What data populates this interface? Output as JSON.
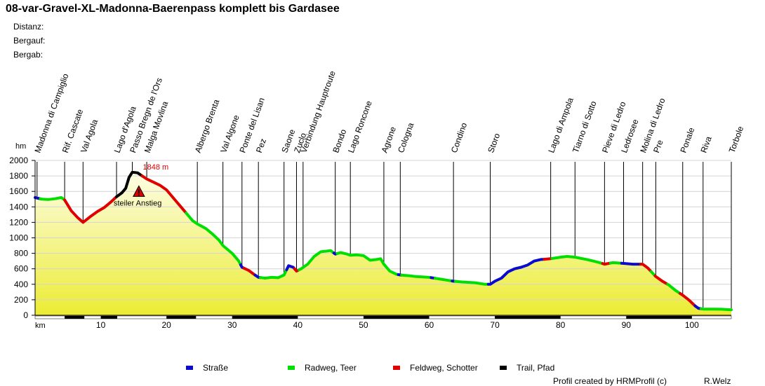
{
  "title": "08-var-Gravel-XL-Madonna-Baerenpass komplett bis Gardasee",
  "stats": [
    {
      "label": "Distanz:"
    },
    {
      "label": "Bergauf:"
    },
    {
      "label": "Bergab:"
    }
  ],
  "legend": [
    {
      "label": "Straße",
      "color": "#0a0ad0"
    },
    {
      "label": "Radweg, Teer",
      "color": "#00e000"
    },
    {
      "label": "Feldweg, Schotter",
      "color": "#e00000"
    },
    {
      "label": "Trail, Pfad",
      "color": "#000000"
    }
  ],
  "footer": {
    "left": "Profil created by HRMProfil (c)",
    "right": "R.Welz"
  },
  "chart_data": {
    "type": "area",
    "ylabel": "hm",
    "xlabel": "km",
    "xlim": [
      0,
      106
    ],
    "ylim": [
      0,
      2000
    ],
    "x_ticks": [
      10,
      20,
      30,
      40,
      50,
      60,
      70,
      80,
      90,
      100
    ],
    "y_ticks": [
      0,
      200,
      400,
      600,
      800,
      1000,
      1200,
      1400,
      1600,
      1800,
      2000
    ],
    "max_label": "1848 m",
    "max_point": {
      "x": 14.8,
      "y": 1848
    },
    "warning_text": "steiler Anstieg",
    "warning_point": {
      "x": 15.8,
      "y": 1580
    },
    "waypoints": [
      {
        "name": "Madonna di Campiglio",
        "x": 0.3
      },
      {
        "name": "Rif. Cascate",
        "x": 4.5
      },
      {
        "name": "Val Agola",
        "x": 7.3
      },
      {
        "name": "Lago d'Agola",
        "x": 12.4
      },
      {
        "name": "Passo Bregn de l'Ors",
        "x": 14.8
      },
      {
        "name": "Malga Movlina",
        "x": 17.0
      },
      {
        "name": "Albergo Brenta",
        "x": 24.7
      },
      {
        "name": "Val Algone",
        "x": 28.6
      },
      {
        "name": "Ponte del Lisan",
        "x": 31.5
      },
      {
        "name": "Pez",
        "x": 34.0
      },
      {
        "name": "Saone",
        "x": 37.9
      },
      {
        "name": "Zuclo",
        "x": 39.8
      },
      {
        "name": "Verbindung Hauptroute",
        "x": 40.8
      },
      {
        "name": "Bondo",
        "x": 45.7
      },
      {
        "name": "Lago Roncone",
        "x": 48.0
      },
      {
        "name": "Agrone",
        "x": 53.1
      },
      {
        "name": "Cologna",
        "x": 55.6
      },
      {
        "name": "Condino",
        "x": 63.7
      },
      {
        "name": "Storo",
        "x": 69.3
      },
      {
        "name": "Lago di Ampola",
        "x": 78.5
      },
      {
        "name": "Tiarno di Sotto",
        "x": 82.2
      },
      {
        "name": "Pieve di Ledro",
        "x": 86.7
      },
      {
        "name": "Ledrosee",
        "x": 89.6
      },
      {
        "name": "Molina di Ledro",
        "x": 92.5
      },
      {
        "name": "Pre",
        "x": 94.5
      },
      {
        "name": "Ponale",
        "x": 98.6
      },
      {
        "name": "Riva",
        "x": 101.7
      },
      {
        "name": "Torbole",
        "x": 106.0
      }
    ],
    "surface_bar": [
      {
        "from": 0,
        "to": 4.5,
        "type": "Radweg, Teer",
        "color": "#ffffff"
      },
      {
        "from": 4.5,
        "to": 7.5,
        "type": "Feldweg, Schotter",
        "color": "#000000"
      },
      {
        "from": 7.5,
        "to": 10,
        "type": "Radweg, Teer",
        "color": "#ffffff"
      },
      {
        "from": 10,
        "to": 12.5,
        "type": "Feldweg, Schotter",
        "color": "#000000"
      },
      {
        "from": 12.5,
        "to": 20,
        "type": "Trail, Pfad",
        "color": "#ffffff"
      },
      {
        "from": 20,
        "to": 24.5,
        "type": "Feldweg, Schotter",
        "color": "#000000"
      },
      {
        "from": 24.5,
        "to": 30,
        "type": "Radweg, Teer",
        "color": "#ffffff"
      },
      {
        "from": 30,
        "to": 40,
        "type": "Straße",
        "color": "#000000"
      },
      {
        "from": 40,
        "to": 50,
        "type": "Radweg, Teer",
        "color": "#ffffff"
      },
      {
        "from": 50,
        "to": 60,
        "type": "Radweg, Teer",
        "color": "#000000"
      },
      {
        "from": 60,
        "to": 70,
        "type": "Radweg, Teer",
        "color": "#ffffff"
      },
      {
        "from": 70,
        "to": 80,
        "type": "Straße",
        "color": "#000000"
      },
      {
        "from": 80,
        "to": 90,
        "type": "Radweg, Teer",
        "color": "#ffffff"
      },
      {
        "from": 90,
        "to": 100,
        "type": "Radweg, Teer",
        "color": "#000000"
      },
      {
        "from": 100,
        "to": 106,
        "type": "Radweg, Teer",
        "color": "#ffffff"
      }
    ],
    "series": [
      {
        "points": [
          [
            0,
            1520
          ],
          [
            1,
            1500
          ],
          [
            2,
            1495
          ],
          [
            3,
            1505
          ],
          [
            4,
            1520
          ],
          [
            4.5,
            1490
          ],
          [
            5.5,
            1350
          ],
          [
            6.5,
            1260
          ],
          [
            7.3,
            1200
          ],
          [
            8.5,
            1280
          ],
          [
            9.5,
            1340
          ],
          [
            10.5,
            1390
          ],
          [
            11.5,
            1460
          ],
          [
            12.4,
            1530
          ],
          [
            13.2,
            1580
          ],
          [
            13.8,
            1640
          ],
          [
            14.3,
            1780
          ],
          [
            14.8,
            1848
          ],
          [
            15.6,
            1840
          ],
          [
            16.3,
            1800
          ],
          [
            17.0,
            1760
          ],
          [
            18.0,
            1720
          ],
          [
            19.0,
            1680
          ],
          [
            20.0,
            1620
          ],
          [
            21.0,
            1520
          ],
          [
            22.0,
            1420
          ],
          [
            23.0,
            1320
          ],
          [
            24.0,
            1220
          ],
          [
            24.7,
            1180
          ],
          [
            26.0,
            1120
          ],
          [
            27.0,
            1050
          ],
          [
            28.0,
            970
          ],
          [
            28.6,
            900
          ],
          [
            30.0,
            800
          ],
          [
            31.0,
            700
          ],
          [
            31.5,
            620
          ],
          [
            32.5,
            580
          ],
          [
            33.3,
            530
          ],
          [
            34.0,
            490
          ],
          [
            35.0,
            480
          ],
          [
            36.0,
            490
          ],
          [
            37.0,
            485
          ],
          [
            37.9,
            520
          ],
          [
            38.6,
            640
          ],
          [
            39.3,
            620
          ],
          [
            39.8,
            570
          ],
          [
            40.5,
            600
          ],
          [
            41.5,
            660
          ],
          [
            42.5,
            760
          ],
          [
            43.5,
            820
          ],
          [
            44.5,
            830
          ],
          [
            45.0,
            835
          ],
          [
            45.7,
            790
          ],
          [
            46.5,
            810
          ],
          [
            47.5,
            790
          ],
          [
            48.0,
            775
          ],
          [
            49.0,
            780
          ],
          [
            50.0,
            770
          ],
          [
            51.0,
            710
          ],
          [
            52.0,
            720
          ],
          [
            52.6,
            730
          ],
          [
            53.1,
            660
          ],
          [
            54.0,
            570
          ],
          [
            55.0,
            530
          ],
          [
            55.6,
            520
          ],
          [
            57.0,
            510
          ],
          [
            58.0,
            500
          ],
          [
            60.0,
            490
          ],
          [
            61.5,
            470
          ],
          [
            63.7,
            440
          ],
          [
            65.0,
            430
          ],
          [
            67.0,
            420
          ],
          [
            68.5,
            400
          ],
          [
            69.3,
            400
          ],
          [
            70.0,
            440
          ],
          [
            71.0,
            480
          ],
          [
            72.0,
            560
          ],
          [
            73.0,
            600
          ],
          [
            74.0,
            620
          ],
          [
            75.0,
            650
          ],
          [
            76.0,
            700
          ],
          [
            77.0,
            720
          ],
          [
            78.5,
            730
          ],
          [
            80.0,
            750
          ],
          [
            81.0,
            760
          ],
          [
            82.2,
            750
          ],
          [
            84.0,
            720
          ],
          [
            85.5,
            690
          ],
          [
            86.7,
            660
          ],
          [
            88.0,
            680
          ],
          [
            89.6,
            670
          ],
          [
            91.0,
            660
          ],
          [
            92.5,
            660
          ],
          [
            93.3,
            610
          ],
          [
            94.5,
            500
          ],
          [
            95.5,
            440
          ],
          [
            96.5,
            390
          ],
          [
            97.5,
            320
          ],
          [
            98.6,
            260
          ],
          [
            99.5,
            200
          ],
          [
            100.5,
            120
          ],
          [
            101.0,
            90
          ],
          [
            101.7,
            80
          ],
          [
            103.0,
            80
          ],
          [
            104.5,
            78
          ],
          [
            106.0,
            70
          ]
        ],
        "segments": [
          {
            "from": 0,
            "to": 0.8,
            "surface": "Straße"
          },
          {
            "from": 0.8,
            "to": 4.5,
            "surface": "Radweg, Teer"
          },
          {
            "from": 4.5,
            "to": 12.4,
            "surface": "Feldweg, Schotter"
          },
          {
            "from": 12.4,
            "to": 14.2,
            "surface": "Trail, Pfad"
          },
          {
            "from": 14.2,
            "to": 16.3,
            "surface": "Trail, Pfad"
          },
          {
            "from": 16.3,
            "to": 23.0,
            "surface": "Feldweg, Schotter"
          },
          {
            "from": 23.0,
            "to": 31.3,
            "surface": "Radweg, Teer"
          },
          {
            "from": 31.3,
            "to": 31.8,
            "surface": "Straße"
          },
          {
            "from": 31.8,
            "to": 33.5,
            "surface": "Feldweg, Schotter"
          },
          {
            "from": 33.5,
            "to": 34.3,
            "surface": "Straße"
          },
          {
            "from": 34.3,
            "to": 38.3,
            "surface": "Radweg, Teer"
          },
          {
            "from": 38.3,
            "to": 39.5,
            "surface": "Straße"
          },
          {
            "from": 39.5,
            "to": 40.2,
            "surface": "Feldweg, Schotter"
          },
          {
            "from": 40.2,
            "to": 45.5,
            "surface": "Radweg, Teer"
          },
          {
            "from": 45.5,
            "to": 46.0,
            "surface": "Straße"
          },
          {
            "from": 46.0,
            "to": 55.3,
            "surface": "Radweg, Teer"
          },
          {
            "from": 55.3,
            "to": 55.8,
            "surface": "Straße"
          },
          {
            "from": 55.8,
            "to": 60.3,
            "surface": "Radweg, Teer"
          },
          {
            "from": 60.3,
            "to": 60.9,
            "surface": "Straße"
          },
          {
            "from": 60.9,
            "to": 63.5,
            "surface": "Radweg, Teer"
          },
          {
            "from": 63.5,
            "to": 64.0,
            "surface": "Straße"
          },
          {
            "from": 64.0,
            "to": 69.0,
            "surface": "Radweg, Teer"
          },
          {
            "from": 69.0,
            "to": 77.5,
            "surface": "Straße"
          },
          {
            "from": 77.5,
            "to": 78.7,
            "surface": "Feldweg, Schotter"
          },
          {
            "from": 78.7,
            "to": 86.4,
            "surface": "Radweg, Teer"
          },
          {
            "from": 86.4,
            "to": 87.6,
            "surface": "Feldweg, Schotter"
          },
          {
            "from": 87.6,
            "to": 89.3,
            "surface": "Radweg, Teer"
          },
          {
            "from": 89.3,
            "to": 92.2,
            "surface": "Straße"
          },
          {
            "from": 92.2,
            "to": 93.8,
            "surface": "Feldweg, Schotter"
          },
          {
            "from": 93.8,
            "to": 94.4,
            "surface": "Radweg, Teer"
          },
          {
            "from": 94.4,
            "to": 96.3,
            "surface": "Feldweg, Schotter"
          },
          {
            "from": 96.3,
            "to": 98.2,
            "surface": "Radweg, Teer"
          },
          {
            "from": 98.2,
            "to": 100.5,
            "surface": "Feldweg, Schotter"
          },
          {
            "from": 100.5,
            "to": 101.4,
            "surface": "Straße"
          },
          {
            "from": 101.4,
            "to": 106.0,
            "surface": "Radweg, Teer"
          }
        ]
      }
    ]
  }
}
